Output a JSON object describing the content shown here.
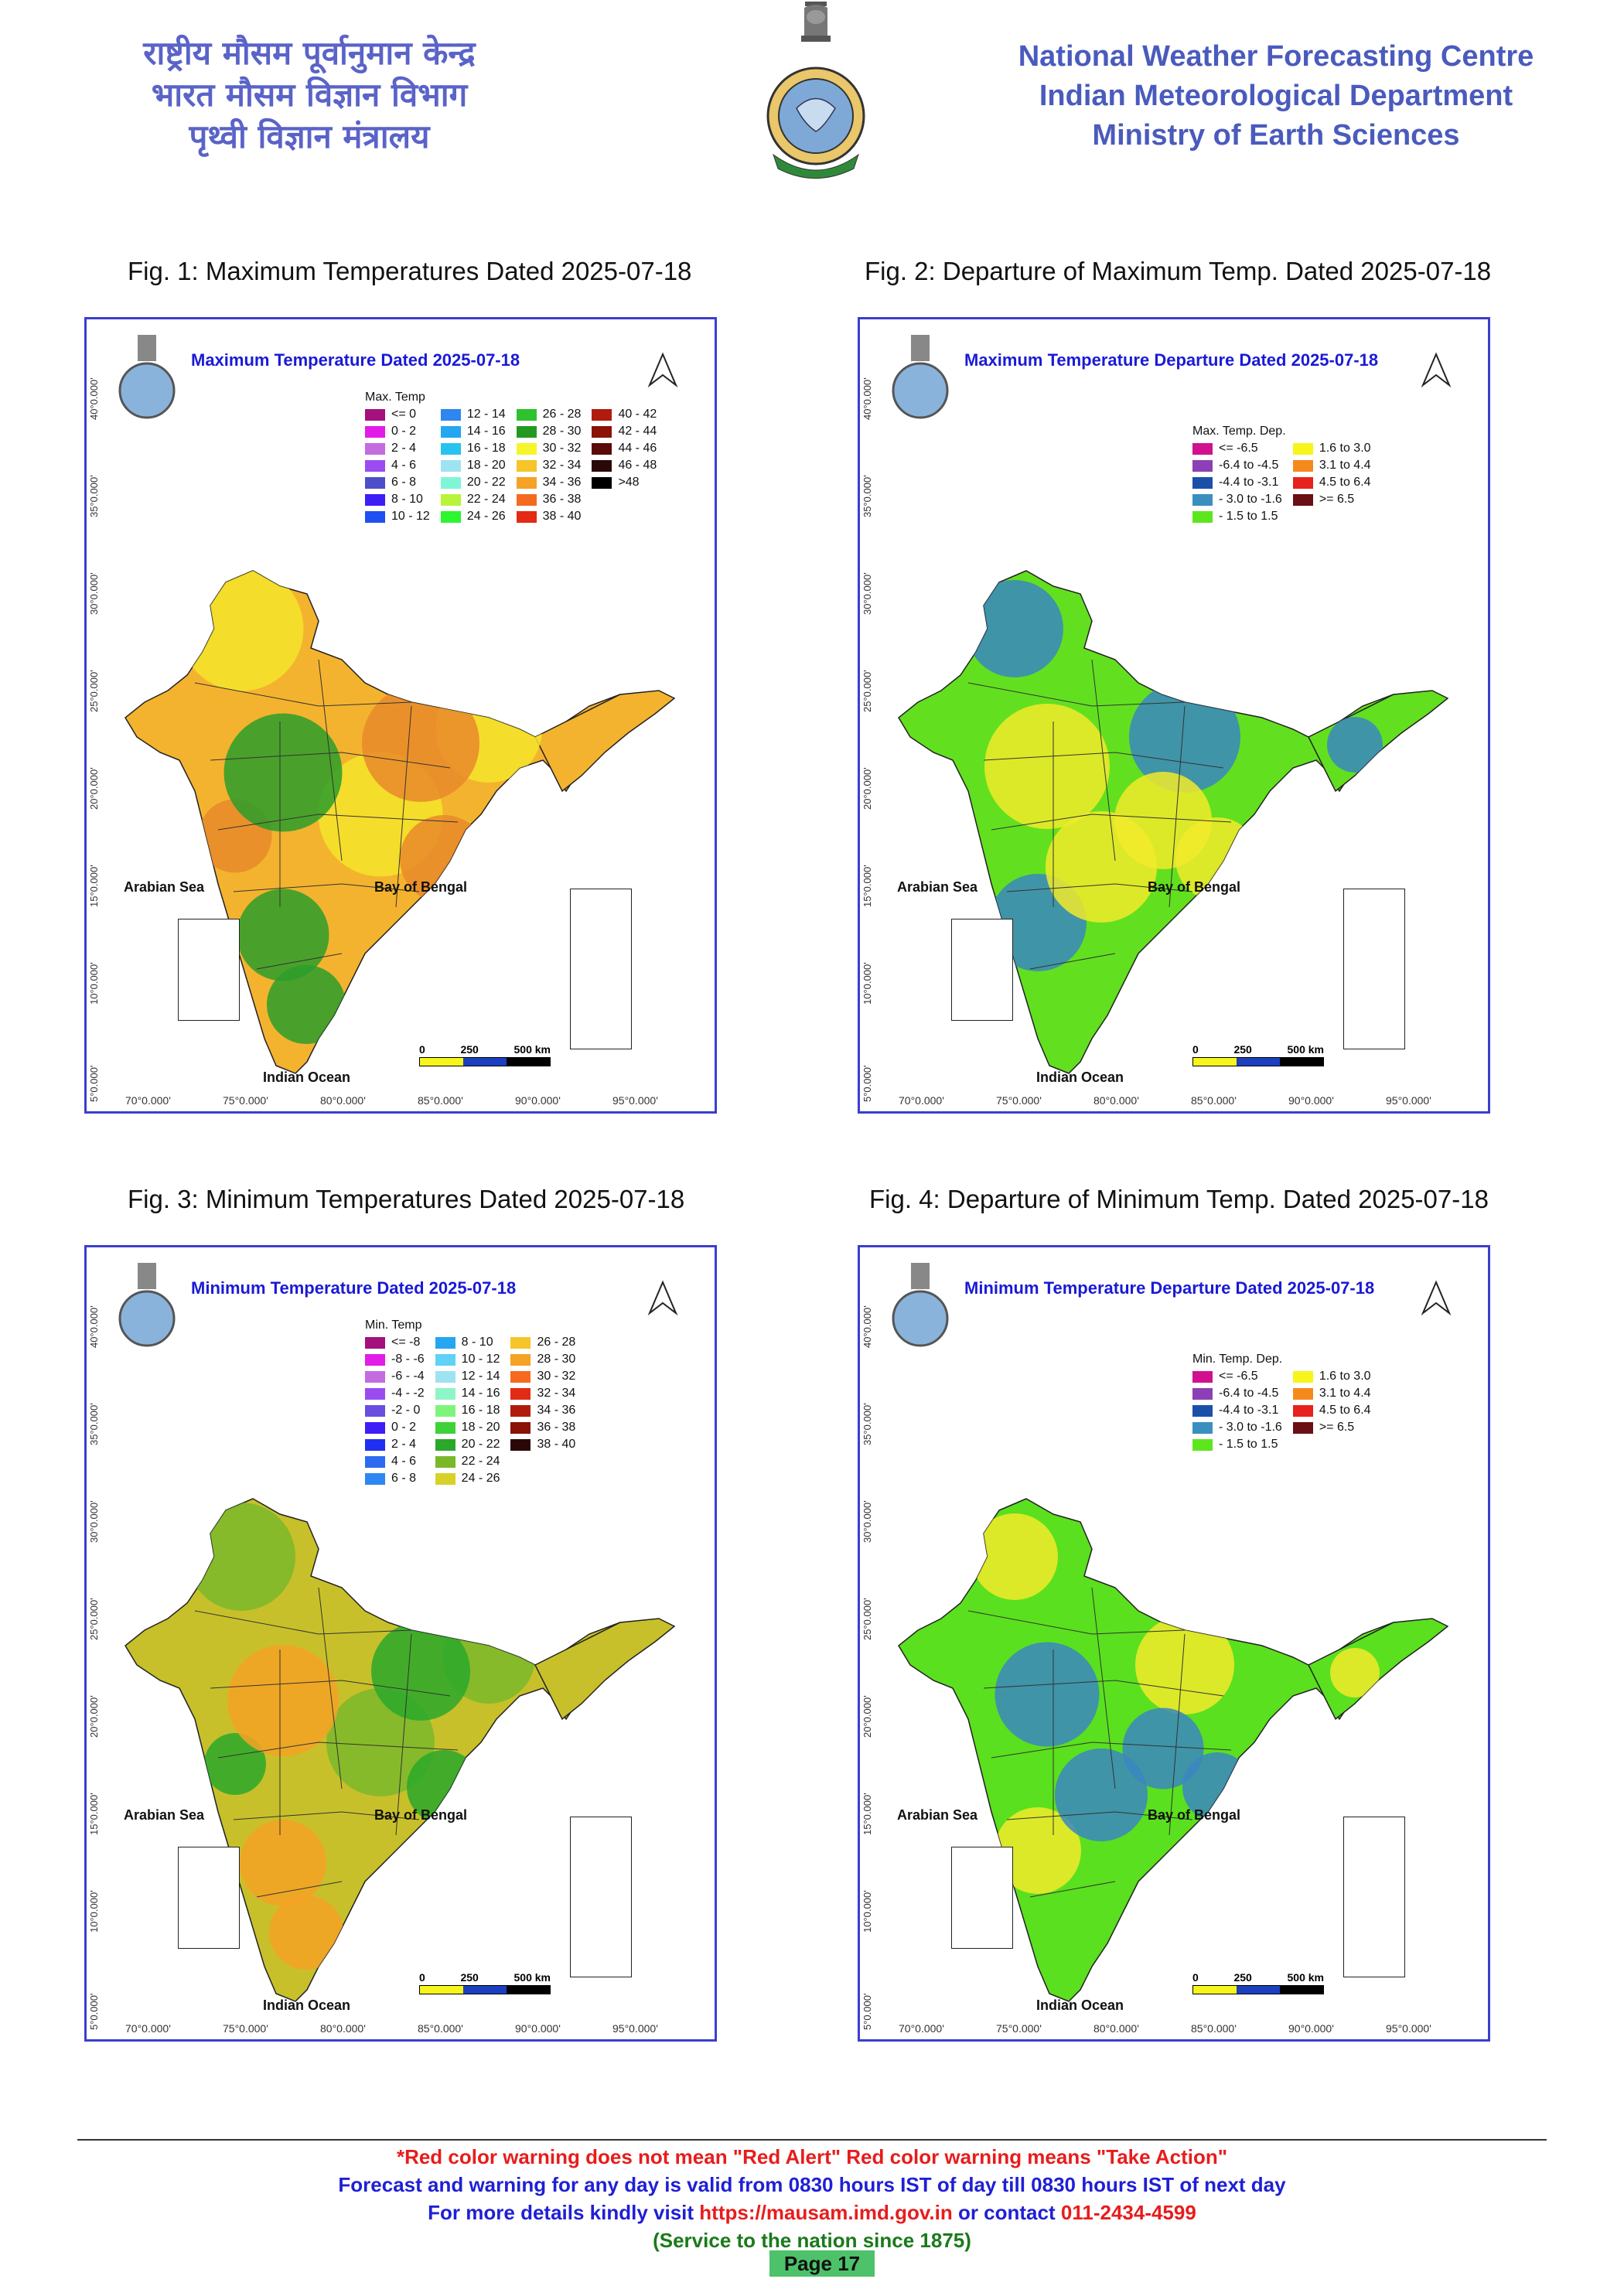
{
  "header": {
    "hindi_lines": [
      "राष्ट्रीय मौसम पूर्वानुमान केन्द्र",
      "भारत मौसम विज्ञान विभाग",
      "पृथ्वी विज्ञान मंत्रालय"
    ],
    "english_lines": [
      "National Weather Forecasting Centre",
      "Indian Meteorological Department",
      "Ministry of Earth Sciences"
    ]
  },
  "figures": [
    {
      "caption": "Fig. 1: Maximum Temperatures Dated 2025-07-18",
      "map_title": "Maximum Temperature Dated 2025-07-18",
      "legend_title": "Max. Temp",
      "legend": [
        {
          "label": "<= 0",
          "color": "#a3117c"
        },
        {
          "label": "0 - 2",
          "color": "#e21ce6"
        },
        {
          "label": "2 - 4",
          "color": "#c46be0"
        },
        {
          "label": "4 - 6",
          "color": "#9b4cf0"
        },
        {
          "label": "6 - 8",
          "color": "#4e4ec9"
        },
        {
          "label": "8 - 10",
          "color": "#3d1ef5"
        },
        {
          "label": "10 - 12",
          "color": "#2050f0"
        },
        {
          "label": "12 - 14",
          "color": "#2e86f0"
        },
        {
          "label": "14 - 16",
          "color": "#24a6f0"
        },
        {
          "label": "16 - 18",
          "color": "#27c3ee"
        },
        {
          "label": "18 - 20",
          "color": "#9ee3f2"
        },
        {
          "label": "20 - 22",
          "color": "#7ff5d7"
        },
        {
          "label": "22 - 24",
          "color": "#b9f43a"
        },
        {
          "label": "24 - 26",
          "color": "#2cf531"
        },
        {
          "label": "26 - 28",
          "color": "#2ec22e"
        },
        {
          "label": "28 - 30",
          "color": "#229a22"
        },
        {
          "label": "30 - 32",
          "color": "#f5f52a"
        },
        {
          "label": "32 - 34",
          "color": "#f5c52a"
        },
        {
          "label": "34 - 36",
          "color": "#f5a225"
        },
        {
          "label": "36 - 38",
          "color": "#f56a1e"
        },
        {
          "label": "38 - 40",
          "color": "#e32a14"
        },
        {
          "label": "40 - 42",
          "color": "#b01b0e"
        },
        {
          "label": "42 - 44",
          "color": "#8a1206"
        },
        {
          "label": "44 - 46",
          "color": "#5c0909"
        },
        {
          "label": "46 - 48",
          "color": "#2b0808"
        },
        {
          "label": ">48",
          "color": "#000000"
        }
      ],
      "base_color": "#f4b32f",
      "zones": [
        [
          "#f5e42a",
          0.55
        ],
        [
          "#e8892a",
          0.35
        ],
        [
          "#2a9d2a",
          0.25
        ]
      ]
    },
    {
      "caption": "Fig. 2: Departure of Maximum Temp. Dated 2025-07-18",
      "map_title": "Maximum Temperature Departure Dated 2025-07-18",
      "legend_title": "Max. Temp. Dep.",
      "legend": [
        {
          "label": "<= -6.5",
          "color": "#d1108f"
        },
        {
          "label": "-6.4 to -4.5",
          "color": "#8d3fb5"
        },
        {
          "label": "-4.4 to -3.1",
          "color": "#1c50a8"
        },
        {
          "label": "- 3.0 to -1.6",
          "color": "#3b8fbf"
        },
        {
          "label": "- 1.5 to 1.5",
          "color": "#5de61e"
        },
        {
          "label": "1.6 to  3.0",
          "color": "#f7f51c"
        },
        {
          "label": "3.1 to 4.4",
          "color": "#f58a1c"
        },
        {
          "label": "4.5 to 6.4",
          "color": "#e8221c"
        },
        {
          "label": ">= 6.5",
          "color": "#6a0f14"
        }
      ],
      "base_color": "#62e01f",
      "zones": [
        [
          "#3b86c0",
          0.3
        ],
        [
          "#f2ea2a",
          0.3
        ]
      ]
    },
    {
      "caption": "Fig. 3: Minimum Temperatures Dated 2025-07-18",
      "map_title": "Minimum Temperature Dated 2025-07-18",
      "legend_title": "Min. Temp",
      "legend": [
        {
          "label": "<= -8",
          "color": "#a3117c"
        },
        {
          "label": "-8 - -6",
          "color": "#e21ce6"
        },
        {
          "label": "-6 - -4",
          "color": "#c46be0"
        },
        {
          "label": "-4 - -2",
          "color": "#9b4cf0"
        },
        {
          "label": "-2 - 0",
          "color": "#6a4ee0"
        },
        {
          "label": "0 - 2",
          "color": "#3d1ef5"
        },
        {
          "label": "2 - 4",
          "color": "#2030f0"
        },
        {
          "label": "4 - 6",
          "color": "#2e6af0"
        },
        {
          "label": "6 - 8",
          "color": "#2e86f0"
        },
        {
          "label": "8 - 10",
          "color": "#24a6f0"
        },
        {
          "label": "10 - 12",
          "color": "#5fd2f5"
        },
        {
          "label": "12 - 14",
          "color": "#9ee3f2"
        },
        {
          "label": "14 - 16",
          "color": "#8ef5c8"
        },
        {
          "label": "16 - 18",
          "color": "#7ef57a"
        },
        {
          "label": "18 - 20",
          "color": "#3ed23a"
        },
        {
          "label": "20 - 22",
          "color": "#29a829"
        },
        {
          "label": "22 - 24",
          "color": "#7ab82a"
        },
        {
          "label": "24 - 26",
          "color": "#d6d22a"
        },
        {
          "label": "26 - 28",
          "color": "#f5c52a"
        },
        {
          "label": "28 - 30",
          "color": "#f5a225"
        },
        {
          "label": "30 - 32",
          "color": "#f56a1e"
        },
        {
          "label": "32 - 34",
          "color": "#e32a14"
        },
        {
          "label": "34 - 36",
          "color": "#b01b0e"
        },
        {
          "label": "36 - 38",
          "color": "#8a1206"
        },
        {
          "label": "38 - 40",
          "color": "#2b0808"
        }
      ],
      "base_color": "#c8c02a",
      "zones": [
        [
          "#7ab82a",
          0.4
        ],
        [
          "#2aa82a",
          0.2
        ],
        [
          "#f5a225",
          0.2
        ]
      ]
    },
    {
      "caption": "Fig. 4: Departure of Minimum Temp. Dated 2025-07-18",
      "map_title": "Minimum Temperature Departure Dated 2025-07-18",
      "legend_title": "Min. Temp. Dep.",
      "legend": [
        {
          "label": "<= -6.5",
          "color": "#d1108f"
        },
        {
          "label": "-6.4 to -4.5",
          "color": "#8d3fb5"
        },
        {
          "label": "-4.4 to -3.1",
          "color": "#1c50a8"
        },
        {
          "label": "- 3.0 to -1.6",
          "color": "#3b8fbf"
        },
        {
          "label": "- 1.5 to 1.5",
          "color": "#5de61e"
        },
        {
          "label": "1.6 to  3.0",
          "color": "#f7f51c"
        },
        {
          "label": "3.1 to 4.4",
          "color": "#f58a1c"
        },
        {
          "label": "4.5 to 6.4",
          "color": "#e8221c"
        },
        {
          "label": ">= 6.5",
          "color": "#6a0f14"
        }
      ],
      "base_color": "#5ae01e",
      "zones": [
        [
          "#f2ea2a",
          0.2
        ],
        [
          "#3b86c0",
          0.15
        ]
      ]
    }
  ],
  "map_labels": {
    "arabian_sea": "Arabian Sea",
    "bay_of_bengal": "Bay of Bengal",
    "indian_ocean": "Indian Ocean",
    "scale": [
      "0",
      "250",
      "500 km"
    ],
    "lons": [
      "70°0.000'",
      "75°0.000'",
      "80°0.000'",
      "85°0.000'",
      "90°0.000'",
      "95°0.000'"
    ],
    "lats": [
      "40°0.000'",
      "35°0.000'",
      "30°0.000'",
      "25°0.000'",
      "20°0.000'",
      "15°0.000'",
      "10°0.000'",
      "5°0.000'"
    ]
  },
  "footer": {
    "line1": "*Red color warning does not mean \"Red Alert\" Red color warning means \"Take Action\"",
    "line2": "Forecast and warning for any day is valid from 0830 hours IST of day till 0830 hours IST of next day",
    "line3_prefix": "For more details kindly visit",
    "line3_url": "https://mausam.imd.gov.in",
    "line3_mid": "or contact",
    "line3_phone": "011-2434-4599",
    "line4": "(Service to the nation since 1875)",
    "page": "Page 17"
  },
  "colors": {
    "blue_text": "#1f1fd6",
    "red_text": "#e81c1c",
    "green_text": "#1a7a1a",
    "panel_border": "#3a3fcf"
  }
}
